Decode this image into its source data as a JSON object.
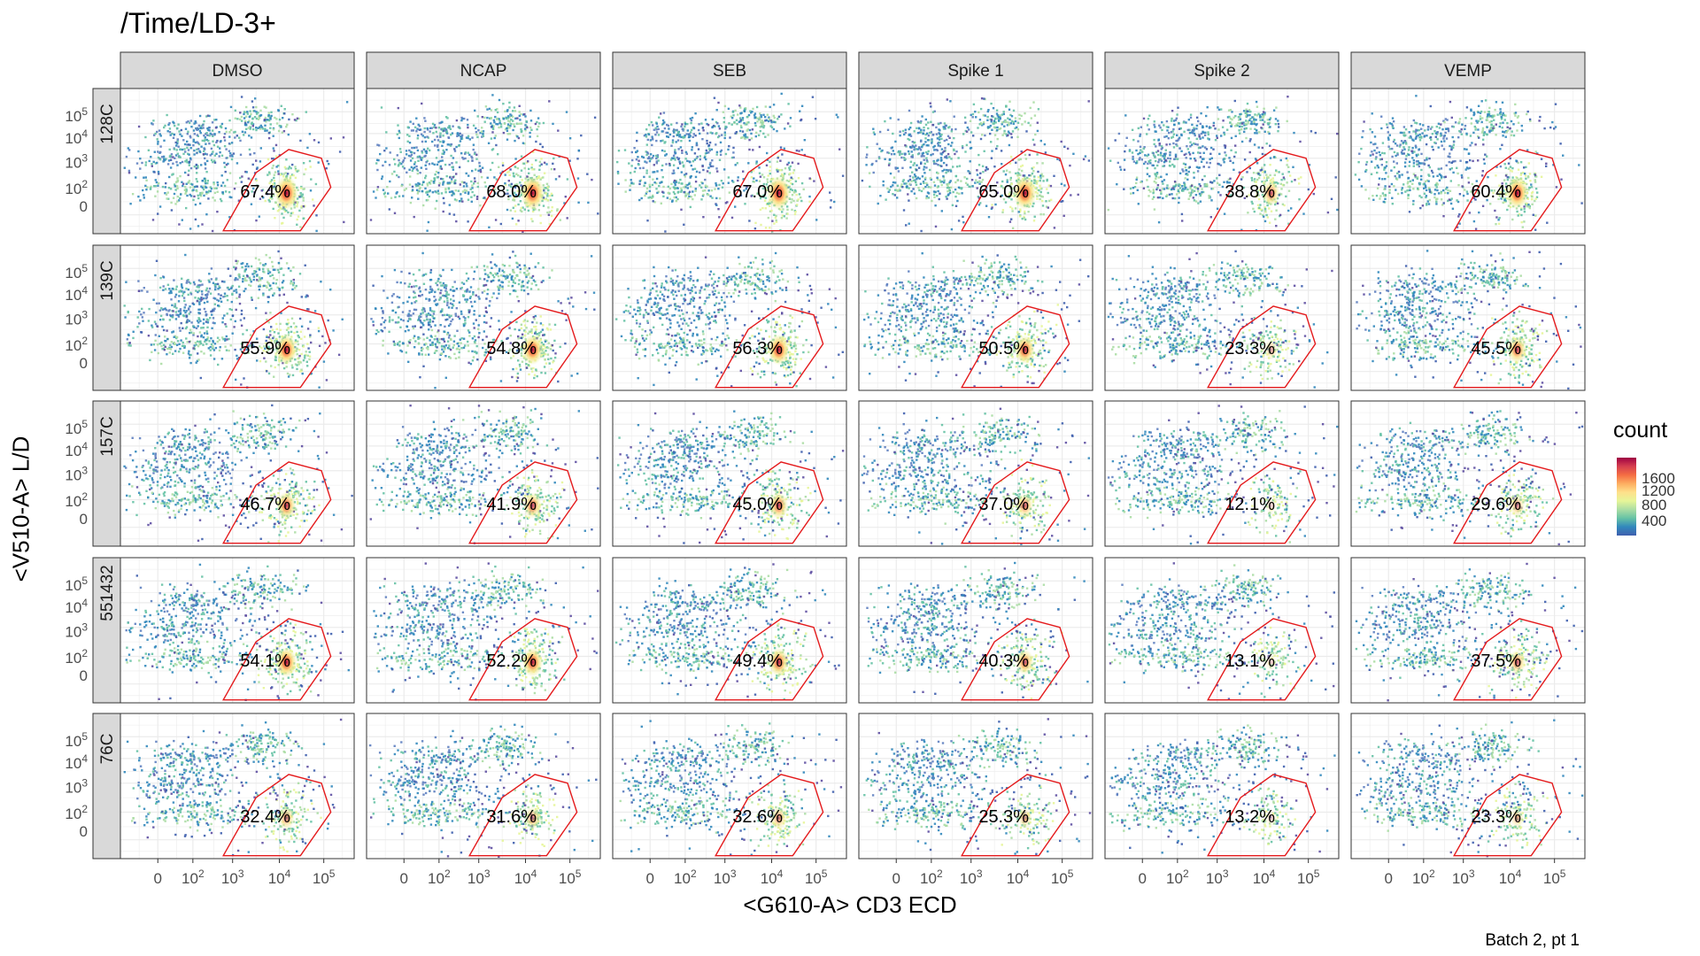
{
  "title": "/Time/LD-3+",
  "caption": "Batch 2, pt 1",
  "chart_data": {
    "type": "heatmap",
    "title": "/Time/LD-3+",
    "xlabel": "<G610-A> CD3 ECD",
    "ylabel": "<V510-A> L/D",
    "columns": [
      "DMSO",
      "NCAP",
      "SEB",
      "Spike 1",
      "Spike 2",
      "VEMP"
    ],
    "rows": [
      "128C",
      "139C",
      "157C",
      "551432",
      "76C"
    ],
    "gate_percentages": [
      [
        "67.4%",
        "68.0%",
        "67.0%",
        "65.0%",
        "38.8%",
        "60.4%"
      ],
      [
        "55.9%",
        "54.8%",
        "56.3%",
        "50.5%",
        "23.3%",
        "45.5%"
      ],
      [
        "46.7%",
        "41.9%",
        "45.0%",
        "37.0%",
        "12.1%",
        "29.6%"
      ],
      [
        "54.1%",
        "52.2%",
        "49.4%",
        "40.3%",
        "13.1%",
        "37.5%"
      ],
      [
        "32.4%",
        "31.6%",
        "32.6%",
        "25.3%",
        "13.2%",
        "23.3%"
      ]
    ],
    "x_ticks": [
      "0",
      "10^2",
      "10^3",
      "10^4",
      "10^5"
    ],
    "y_ticks": [
      "0",
      "10^2",
      "10^3",
      "10^4",
      "10^5"
    ],
    "legend": {
      "title": "count",
      "labels": [
        "400",
        "800",
        "1200",
        "1600"
      ],
      "placement": "right",
      "colors": [
        "#3f5fae",
        "#3288bd",
        "#66c2a5",
        "#abdda4",
        "#e6f598",
        "#fee08b",
        "#fdae61",
        "#f46d43",
        "#d53e4f",
        "#9e0142"
      ]
    },
    "gate_color": "#e41a1c",
    "strip_color": "#d9d9d9",
    "grid": true
  }
}
